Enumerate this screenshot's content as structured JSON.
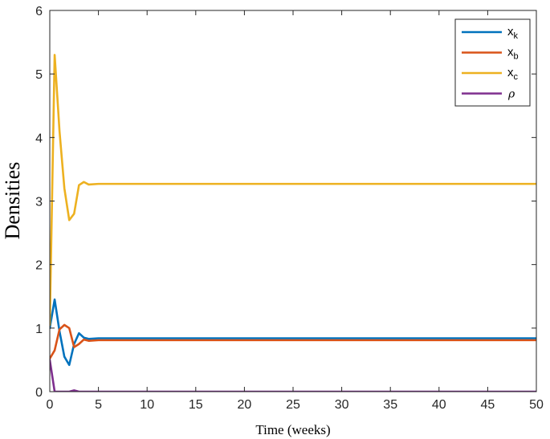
{
  "chart_data": {
    "type": "line",
    "title": "",
    "xlabel": "Time (weeks)",
    "ylabel": "Densities",
    "xlim": [
      0,
      50
    ],
    "ylim": [
      0,
      6
    ],
    "xticks": [
      "0",
      "5",
      "10",
      "15",
      "20",
      "25",
      "30",
      "35",
      "40",
      "45",
      "50"
    ],
    "yticks": [
      "0",
      "1",
      "2",
      "3",
      "4",
      "5",
      "6"
    ],
    "grid": false,
    "legend_position": "top-right",
    "series": [
      {
        "name": "x_k",
        "label_main": "x",
        "label_sub": "k",
        "color": "#0072BD",
        "x": [
          0,
          0.5,
          1,
          1.5,
          2,
          2.5,
          3,
          3.5,
          4,
          5,
          10,
          50
        ],
        "y": [
          1.0,
          1.45,
          0.95,
          0.55,
          0.42,
          0.75,
          0.92,
          0.85,
          0.83,
          0.84,
          0.84,
          0.84
        ]
      },
      {
        "name": "x_b",
        "label_main": "x",
        "label_sub": "b",
        "color": "#D95319",
        "x": [
          0,
          0.5,
          1,
          1.5,
          2,
          2.5,
          3,
          3.5,
          4,
          5,
          10,
          50
        ],
        "y": [
          0.52,
          0.65,
          0.98,
          1.05,
          1.0,
          0.7,
          0.75,
          0.82,
          0.8,
          0.81,
          0.81,
          0.81
        ]
      },
      {
        "name": "x_c",
        "label_main": "x",
        "label_sub": "c",
        "color": "#EDB120",
        "x": [
          0,
          0.5,
          1,
          1.5,
          2,
          2.5,
          3,
          3.5,
          4,
          5,
          10,
          50
        ],
        "y": [
          1.05,
          5.3,
          4.1,
          3.2,
          2.7,
          2.8,
          3.25,
          3.3,
          3.26,
          3.27,
          3.27,
          3.27
        ]
      },
      {
        "name": "ρ",
        "label_main": "ρ",
        "label_sub": "",
        "color": "#7E2F8E",
        "x": [
          0,
          0.5,
          1,
          2,
          2.5,
          3,
          5,
          10,
          50
        ],
        "y": [
          0.5,
          0.0,
          0.0,
          0.0,
          0.02,
          0.0,
          0.0,
          0.0,
          0.0
        ]
      }
    ]
  }
}
